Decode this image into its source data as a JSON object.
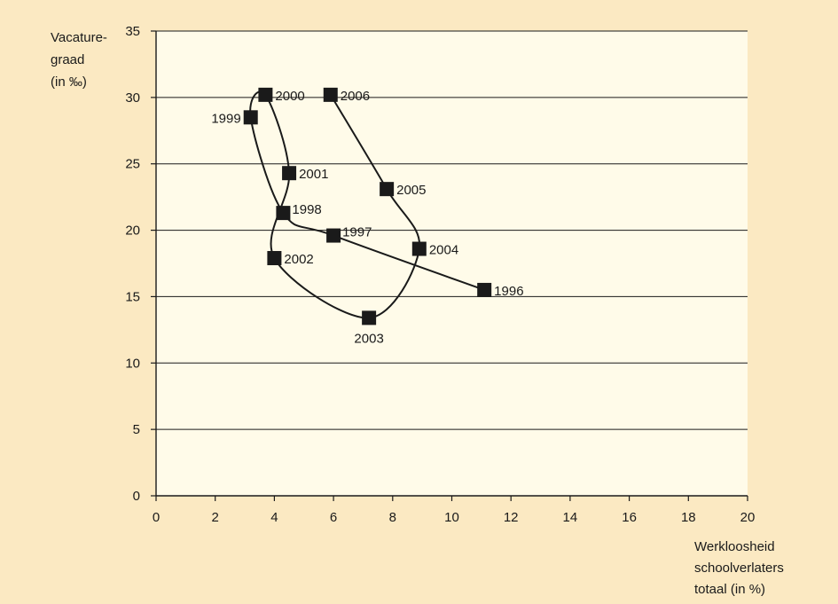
{
  "colors": {
    "page_background": "#fbe9c2",
    "plot_background": "#fffbe9",
    "line": "#1a1a1a",
    "marker": "#1a1a1a",
    "grid": "#1a1a1a"
  },
  "chart_data": {
    "type": "scatter",
    "title": "",
    "ylabel_lines": [
      "Vacature-",
      "graad",
      "(in ‰)"
    ],
    "xlabel_lines": [
      "Werkloosheid",
      "schoolverlaters",
      "totaal (in %)"
    ],
    "xlim": [
      0,
      20
    ],
    "ylim": [
      0,
      35
    ],
    "x_ticks": [
      0,
      2,
      4,
      6,
      8,
      10,
      12,
      14,
      16,
      18,
      20
    ],
    "y_ticks": [
      0,
      5,
      10,
      15,
      20,
      25,
      30,
      35
    ],
    "grid": "horizontal",
    "marker": "square",
    "points": [
      {
        "label": "1996",
        "x": 11.1,
        "y": 15.5,
        "label_pos": "right"
      },
      {
        "label": "1997",
        "x": 6.0,
        "y": 19.6,
        "label_pos": "right-up"
      },
      {
        "label": "1998",
        "x": 4.3,
        "y": 21.3,
        "label_pos": "right-up"
      },
      {
        "label": "1999",
        "x": 3.2,
        "y": 28.5,
        "label_pos": "left"
      },
      {
        "label": "2000",
        "x": 3.7,
        "y": 30.2,
        "label_pos": "right"
      },
      {
        "label": "2001",
        "x": 4.5,
        "y": 24.3,
        "label_pos": "right"
      },
      {
        "label": "2002",
        "x": 4.0,
        "y": 17.9,
        "label_pos": "right"
      },
      {
        "label": "2003",
        "x": 7.2,
        "y": 13.4,
        "label_pos": "below"
      },
      {
        "label": "2004",
        "x": 8.9,
        "y": 18.6,
        "label_pos": "right"
      },
      {
        "label": "2005",
        "x": 7.8,
        "y": 23.1,
        "label_pos": "right"
      },
      {
        "label": "2006",
        "x": 5.9,
        "y": 30.2,
        "label_pos": "right"
      }
    ]
  }
}
